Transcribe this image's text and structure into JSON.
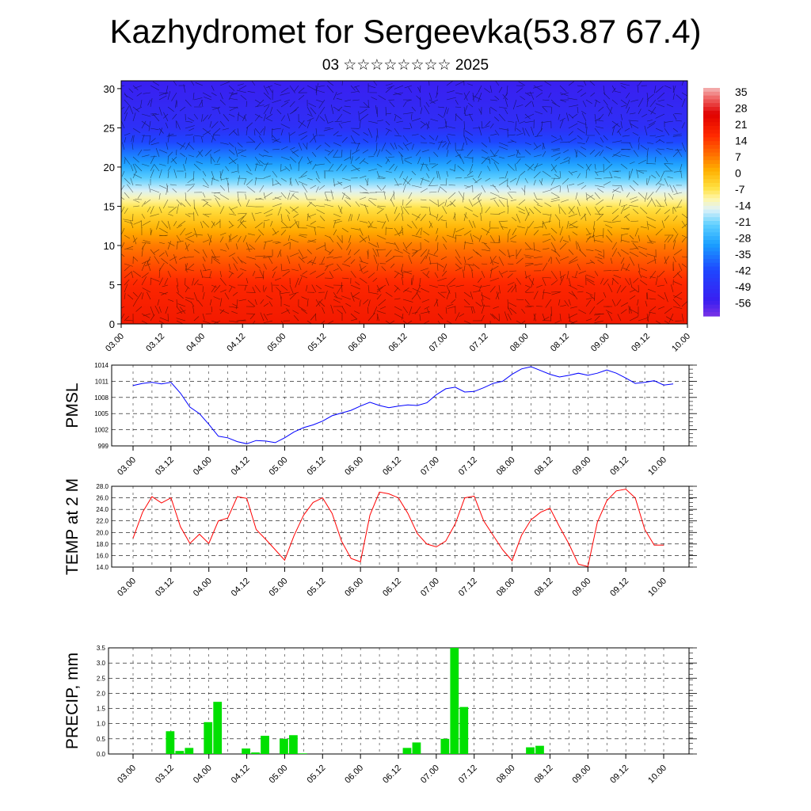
{
  "title": "Kazhydromet for Sergeevka(53.87 67.4)",
  "subtitle": "03 ☆☆☆☆☆☆☆☆ 2025",
  "time_labels": [
    "03.00",
    "03.12",
    "04.00",
    "04.12",
    "05.00",
    "05.12",
    "06.00",
    "06.12",
    "07.00",
    "07.12",
    "08.00",
    "08.12",
    "09.00",
    "09.12",
    "10.00"
  ],
  "chart_data": [
    {
      "type": "heatmap",
      "description_key": "temperature cross-section with wind barbs",
      "y_ticks": [
        0,
        5,
        10,
        15,
        20,
        25,
        30
      ],
      "ylim": [
        0,
        31
      ],
      "colorbar": {
        "labels": [
          "35",
          "28",
          "21",
          "14",
          "7",
          "0",
          "-7",
          "-14",
          "-21",
          "-28",
          "-35",
          "-42",
          "-49",
          "-56"
        ],
        "range": [
          -63,
          42
        ]
      },
      "levels": [
        0,
        5,
        10,
        15,
        20,
        25,
        31
      ],
      "level_temperatures": [
        24,
        21,
        10,
        -5,
        -28,
        -50,
        -56
      ]
    },
    {
      "type": "line",
      "ylabel": "PMSL",
      "y_ticks": [
        999,
        1002,
        1005,
        1008,
        1011,
        1014
      ],
      "ylim": [
        999,
        1014
      ],
      "color": "#0000ff",
      "x_step_hours": 3,
      "values": [
        1010.2,
        1010.6,
        1010.8,
        1010.5,
        1010.8,
        1008.8,
        1006.2,
        1005.0,
        1003.0,
        1000.8,
        1000.5,
        999.8,
        999.4,
        1000.0,
        999.9,
        999.6,
        1000.5,
        1001.6,
        1002.4,
        1002.9,
        1003.6,
        1004.6,
        1005.1,
        1005.6,
        1006.4,
        1007.1,
        1006.5,
        1006.1,
        1006.4,
        1006.6,
        1006.5,
        1007.0,
        1008.5,
        1009.6,
        1009.9,
        1009.0,
        1009.1,
        1009.8,
        1010.6,
        1011.0,
        1012.3,
        1013.3,
        1013.7,
        1013.0,
        1012.3,
        1011.8,
        1012.1,
        1012.5,
        1012.1,
        1012.5,
        1013.1,
        1012.5,
        1011.6,
        1010.6,
        1010.8,
        1011.1,
        1010.3,
        1010.5
      ]
    },
    {
      "type": "line",
      "ylabel": "TEMP at 2 M",
      "y_ticks": [
        "14.0",
        "16.0",
        "18.0",
        "20.0",
        "22.0",
        "24.0",
        "26.0",
        "28.0"
      ],
      "ylim": [
        14,
        28
      ],
      "color": "#ff0000",
      "x_step_hours": 3,
      "values": [
        19.0,
        23.5,
        26.2,
        25.1,
        26.0,
        21.0,
        18.1,
        19.7,
        18.1,
        22.0,
        22.5,
        26.2,
        25.9,
        20.5,
        18.8,
        17.0,
        15.2,
        19.5,
        23.0,
        25.2,
        26.0,
        23.3,
        18.5,
        15.5,
        14.9,
        23.0,
        27.0,
        26.7,
        26.0,
        23.3,
        19.8,
        18.0,
        17.5,
        18.5,
        21.5,
        26.0,
        26.3,
        22.0,
        19.5,
        17.0,
        15.1,
        19.5,
        22.2,
        23.5,
        24.2,
        21.0,
        18.0,
        14.5,
        14.1,
        21.8,
        25.5,
        27.2,
        27.5,
        26.0,
        20.5,
        17.8,
        17.8
      ]
    },
    {
      "type": "bar",
      "ylabel": "PRECIP, mm",
      "y_ticks": [
        "0.0",
        "0.5",
        "1.0",
        "1.5",
        "2.0",
        "2.5",
        "3.0",
        "3.5"
      ],
      "ylim": [
        0,
        3.5
      ],
      "color": "#00e000",
      "x_step_hours": 3,
      "values": [
        0,
        0,
        0,
        0.75,
        0.1,
        0.2,
        0,
        1.05,
        1.72,
        0,
        0,
        0.18,
        0.05,
        0.6,
        0,
        0.5,
        0.62,
        0.02,
        0,
        0,
        0,
        0,
        0,
        0,
        0,
        0,
        0,
        0,
        0.2,
        0.38,
        0,
        0,
        0.5,
        3.5,
        1.55,
        0,
        0,
        0,
        0,
        0,
        0,
        0.22,
        0.27,
        0,
        0,
        0,
        0,
        0,
        0,
        0,
        0,
        0,
        0,
        0,
        0,
        0,
        0
      ]
    }
  ]
}
